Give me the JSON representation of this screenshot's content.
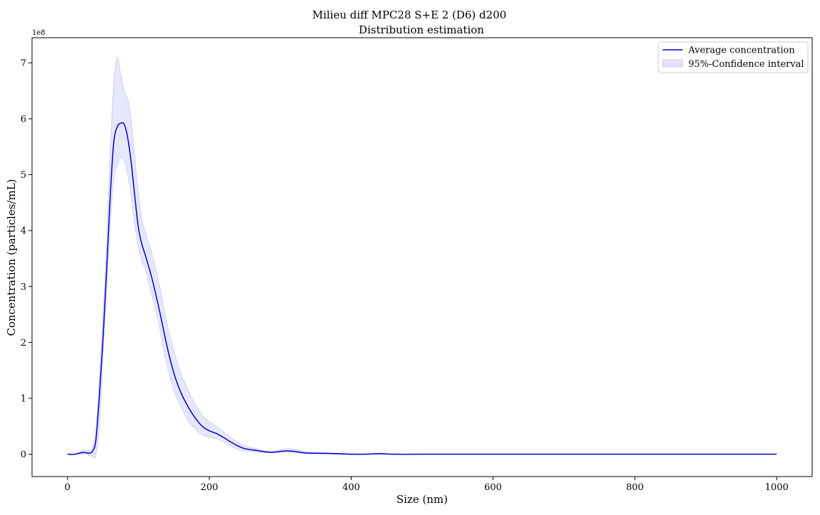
{
  "chart_data": {
    "type": "line",
    "title": "Milieu diff MPC28 S+E 2 (D6) d200",
    "subtitle": "Distribution estimation",
    "xlabel": "Size (nm)",
    "ylabel": "Concentration (particles/mL)",
    "y_scale_label": "1e8",
    "xlim": [
      -50,
      1050
    ],
    "ylim": [
      -0.4,
      7.45
    ],
    "y_multiplier": 100000000,
    "x_ticks": [
      0,
      200,
      400,
      600,
      800,
      1000
    ],
    "x_tick_labels": [
      "0",
      "200",
      "400",
      "600",
      "800",
      "1000"
    ],
    "y_ticks": [
      0,
      1,
      2,
      3,
      4,
      5,
      6,
      7
    ],
    "y_tick_labels": [
      "0",
      "1",
      "2",
      "3",
      "4",
      "5",
      "6",
      "7"
    ],
    "grid": false,
    "legend_position": "top-right",
    "series": [
      {
        "name": "Average concentration",
        "kind": "line",
        "color": "#0000cc",
        "x": [
          0,
          10,
          20,
          25,
          30,
          35,
          40,
          45,
          50,
          55,
          60,
          65,
          70,
          75,
          80,
          85,
          90,
          95,
          100,
          105,
          110,
          120,
          130,
          140,
          150,
          160,
          170,
          180,
          190,
          200,
          210,
          220,
          230,
          240,
          250,
          260,
          270,
          280,
          290,
          300,
          310,
          320,
          330,
          340,
          360,
          380,
          400,
          420,
          440,
          460,
          500,
          600,
          700,
          800,
          900,
          1000
        ],
        "y": [
          0.0,
          0.0,
          0.03,
          0.03,
          0.02,
          0.05,
          0.25,
          1.05,
          2.05,
          3.25,
          4.55,
          5.55,
          5.85,
          5.92,
          5.9,
          5.65,
          5.2,
          4.6,
          4.05,
          3.75,
          3.55,
          3.1,
          2.55,
          1.95,
          1.45,
          1.1,
          0.85,
          0.65,
          0.5,
          0.42,
          0.37,
          0.3,
          0.22,
          0.15,
          0.1,
          0.08,
          0.06,
          0.04,
          0.035,
          0.05,
          0.06,
          0.05,
          0.03,
          0.02,
          0.015,
          0.01,
          0.0,
          0.0,
          0.01,
          0.0,
          0.0,
          0.0,
          0.0,
          0.0,
          0.0,
          0.0
        ]
      },
      {
        "name": "95%-Confidence interval",
        "kind": "band",
        "color": "#b0b0f4",
        "x": [
          0,
          10,
          20,
          25,
          30,
          35,
          40,
          45,
          50,
          55,
          60,
          65,
          70,
          75,
          80,
          85,
          90,
          95,
          100,
          105,
          110,
          120,
          130,
          140,
          150,
          160,
          170,
          180,
          190,
          200,
          210,
          220,
          230,
          240,
          250,
          260,
          270,
          280,
          290,
          300,
          310,
          320,
          330,
          340,
          360,
          380,
          400,
          420,
          440,
          460,
          500,
          600,
          700,
          800,
          900,
          1000
        ],
        "lower": [
          0.0,
          0.0,
          0.0,
          0.01,
          -0.02,
          -0.04,
          -0.02,
          0.55,
          1.7,
          2.9,
          4.0,
          4.9,
          5.15,
          5.3,
          5.25,
          5.0,
          4.6,
          4.1,
          3.7,
          3.45,
          3.3,
          2.8,
          2.25,
          1.6,
          1.15,
          0.85,
          0.6,
          0.45,
          0.35,
          0.3,
          0.28,
          0.22,
          0.14,
          0.09,
          0.06,
          0.05,
          0.04,
          0.03,
          0.03,
          0.03,
          0.04,
          0.03,
          0.02,
          0.01,
          0.01,
          0.0,
          0.0,
          0.0,
          0.0,
          0.0,
          0.0,
          0.0,
          0.0,
          0.0,
          0.0,
          0.0
        ],
        "upper": [
          0.0,
          0.0,
          0.06,
          0.07,
          0.07,
          0.1,
          0.45,
          1.4,
          2.5,
          3.7,
          5.3,
          6.6,
          7.1,
          6.8,
          6.5,
          6.35,
          5.95,
          5.3,
          4.65,
          4.2,
          3.95,
          3.55,
          3.0,
          2.35,
          1.85,
          1.45,
          1.15,
          0.9,
          0.7,
          0.58,
          0.5,
          0.4,
          0.3,
          0.22,
          0.15,
          0.12,
          0.09,
          0.06,
          0.05,
          0.08,
          0.1,
          0.09,
          0.06,
          0.04,
          0.03,
          0.02,
          0.01,
          0.0,
          0.02,
          0.0,
          0.0,
          0.0,
          0.0,
          0.0,
          0.0,
          0.0
        ]
      }
    ]
  }
}
